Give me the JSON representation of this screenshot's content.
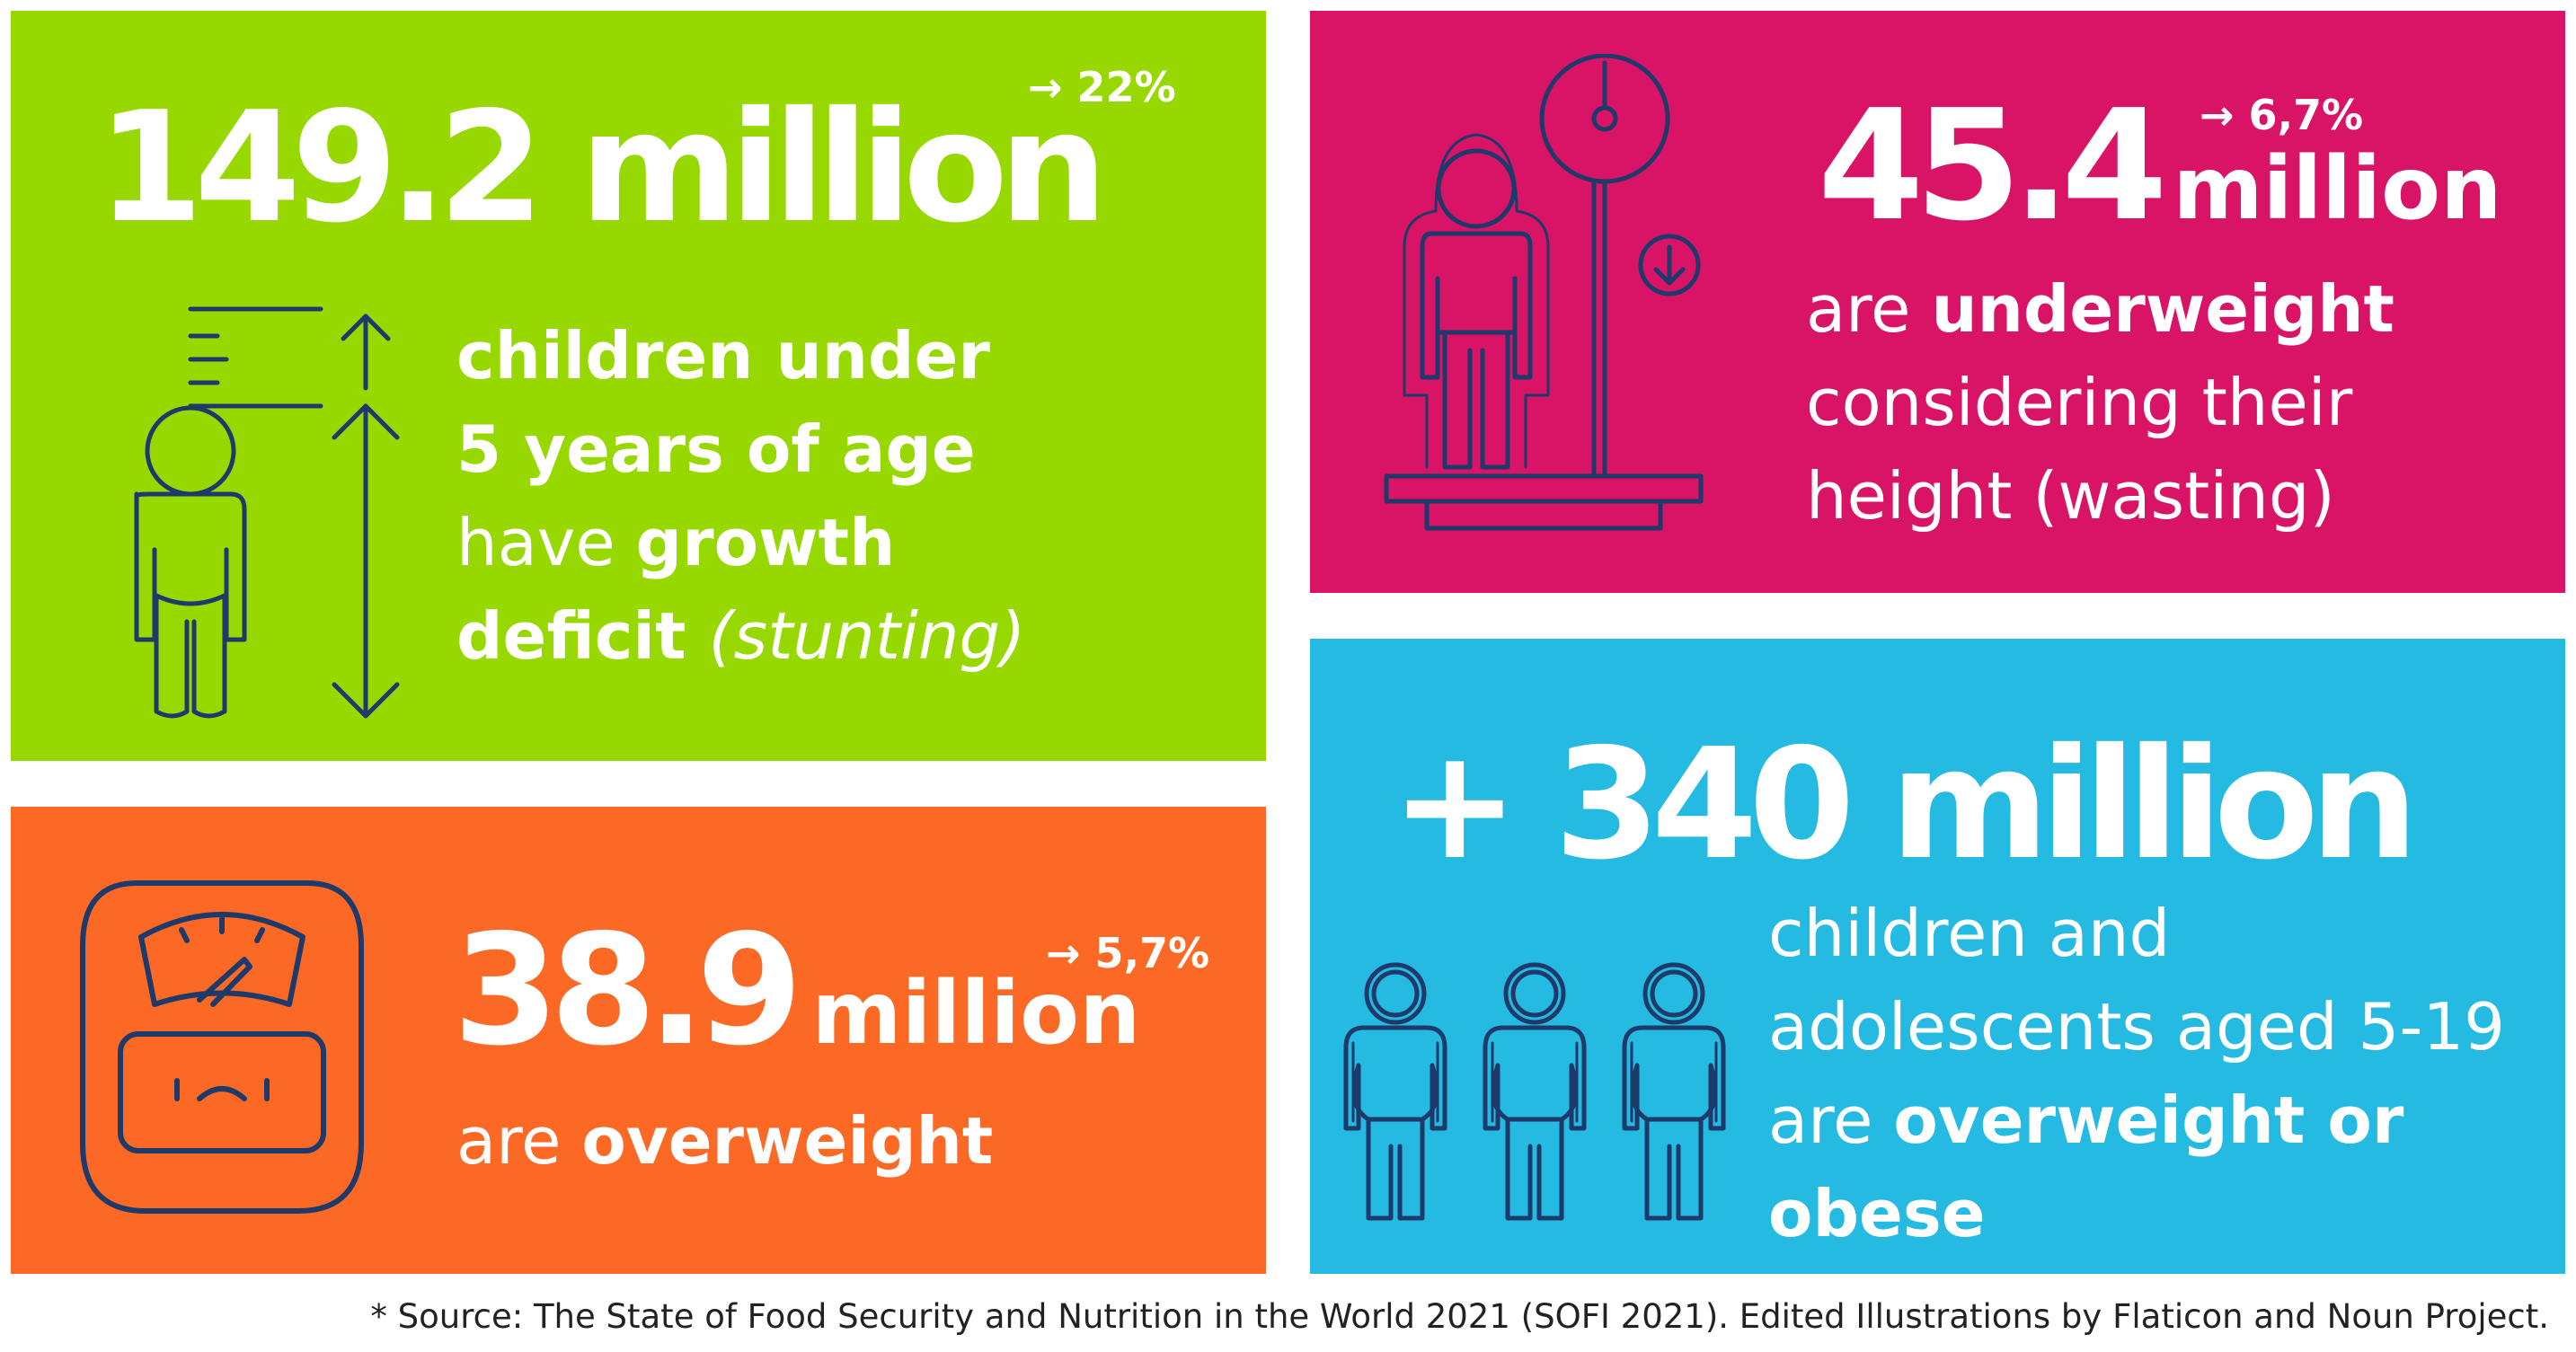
{
  "colors": {
    "green": "#96d800",
    "pink": "#d91366",
    "orange": "#fb6925",
    "blue": "#24bae1",
    "outline": "#1d3a6b",
    "text": "#ffffff"
  },
  "stunting": {
    "amount": "149.2 million",
    "change": "→ 22%",
    "line1": "children under",
    "line2": "5 years of age",
    "line3_a": "have ",
    "line3_b": "growth",
    "line4_a": "deficit ",
    "line4_b": "(stunting)",
    "icon": "child-height-icon"
  },
  "wasting": {
    "amount": "45.4",
    "unit": "million",
    "change": "→ 6,7%",
    "line1_a": "are ",
    "line1_b": "underweight",
    "line2": "considering their",
    "line3": "height (wasting)",
    "icon": "child-scale-icon"
  },
  "overweight": {
    "amount": "38.9",
    "unit": "million",
    "change": "→ 5,7%",
    "line1_a": "are ",
    "line1_b": "overweight",
    "icon": "bathroom-scale-icon"
  },
  "obese": {
    "amount": "+ 340 million",
    "line1": "children and",
    "line2": "adolescents aged 5-19",
    "line3_a": "are ",
    "line3_b": "overweight or",
    "line4": "obese",
    "icon": "three-children-icon"
  },
  "source": "* Source: The State of Food Security and Nutrition in the World 2021 (SOFI 2021). Edited Illustrations by Flaticon and Noun Project."
}
